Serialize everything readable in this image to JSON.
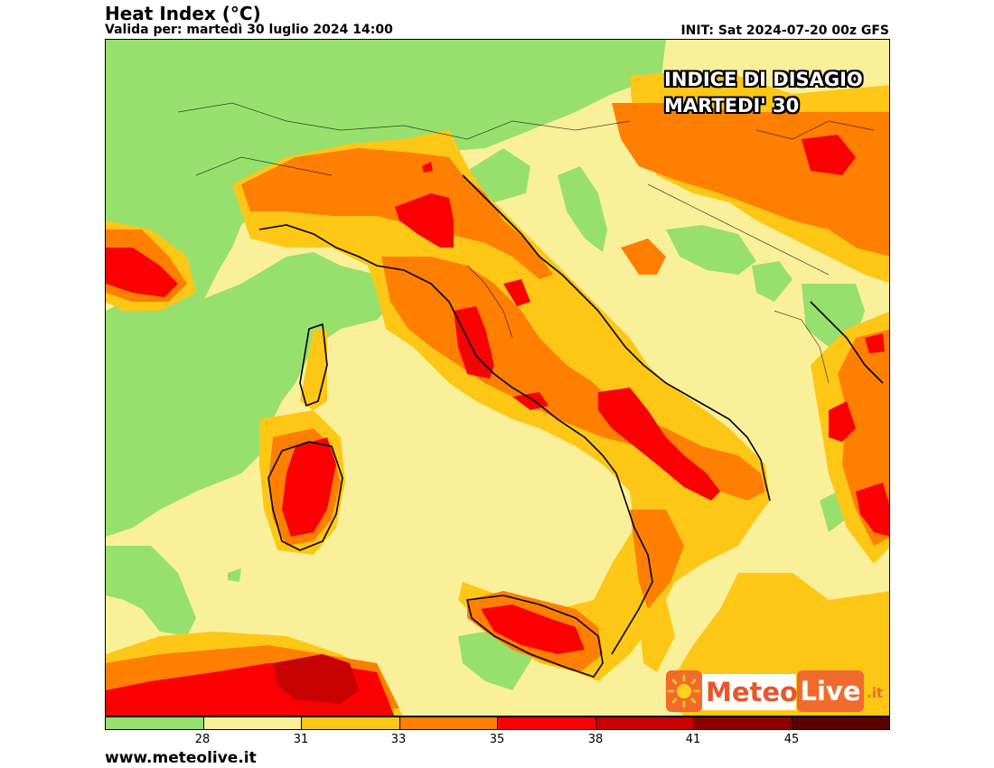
{
  "header": {
    "title": "Heat Index (°C)",
    "valid": "Valida per: martedì 30 luglio 2024 14:00",
    "init": "INIT: Sat 2024-07-20 00z GFS"
  },
  "overlay": {
    "line1": "INDICE DI DISAGIO",
    "line2": "MARTEDI' 30"
  },
  "logo": {
    "part1": "Meteo",
    "part2": "Live",
    "suffix": ".it"
  },
  "legend": {
    "colors": [
      "#98e06e",
      "#fbf09a",
      "#fec716",
      "#fe7f02",
      "#fa0000",
      "#c70000",
      "#8d0000",
      "#5c0000"
    ],
    "ticks": [
      "28",
      "31",
      "33",
      "35",
      "38",
      "41",
      "45"
    ]
  },
  "footer": "www.meteolive.it"
}
